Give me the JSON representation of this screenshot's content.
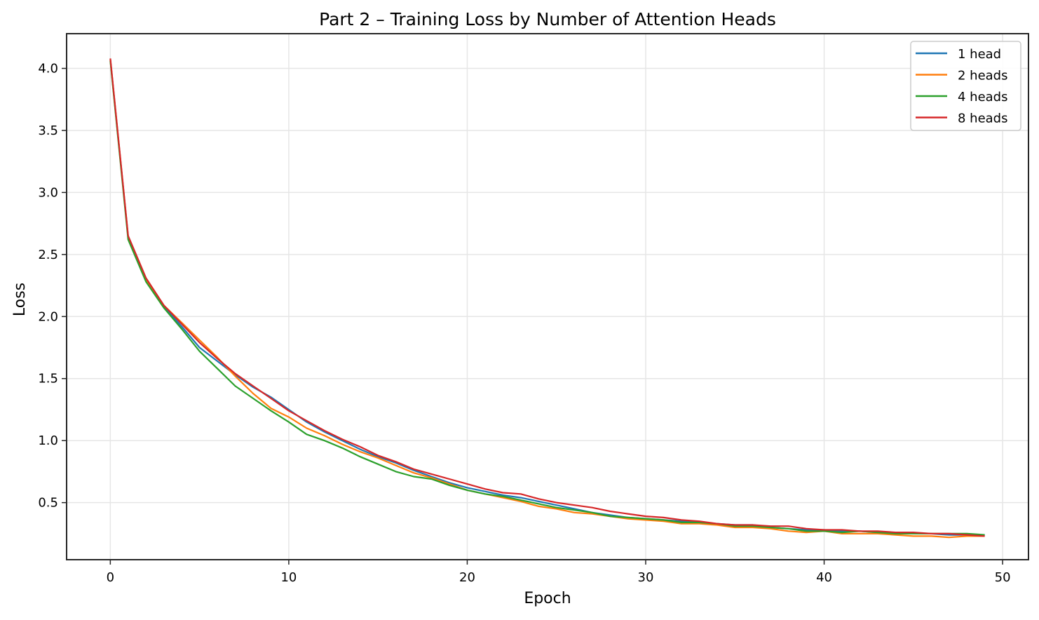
{
  "chart_data": {
    "type": "line",
    "title": "Part 2 – Training Loss by Number of Attention Heads",
    "xlabel": "Epoch",
    "ylabel": "Loss",
    "xlim": [
      -2.45,
      51.45
    ],
    "ylim": [
      0.04,
      4.28
    ],
    "xticks": [
      0,
      10,
      20,
      30,
      40,
      50
    ],
    "yticks": [
      0.5,
      1.0,
      1.5,
      2.0,
      2.5,
      3.0,
      3.5,
      4.0
    ],
    "xtick_labels": [
      "0",
      "10",
      "20",
      "30",
      "40",
      "50"
    ],
    "ytick_labels": [
      "0.5",
      "1.0",
      "1.5",
      "2.0",
      "2.5",
      "3.0",
      "3.5",
      "4.0"
    ],
    "grid": true,
    "legend_position": "upper right",
    "x": [
      0,
      1,
      2,
      3,
      4,
      5,
      6,
      7,
      8,
      9,
      10,
      11,
      12,
      13,
      14,
      15,
      16,
      17,
      18,
      19,
      20,
      21,
      22,
      23,
      24,
      25,
      26,
      27,
      28,
      29,
      30,
      31,
      32,
      33,
      34,
      35,
      36,
      37,
      38,
      39,
      40,
      41,
      42,
      43,
      44,
      45,
      46,
      47,
      48,
      49
    ],
    "series": [
      {
        "name": "1 head",
        "color": "#1f77b4",
        "values": [
          4.07,
          2.64,
          2.3,
          2.08,
          1.92,
          1.75,
          1.64,
          1.53,
          1.43,
          1.35,
          1.25,
          1.15,
          1.07,
          1.0,
          0.93,
          0.87,
          0.82,
          0.76,
          0.71,
          0.66,
          0.62,
          0.59,
          0.56,
          0.54,
          0.51,
          0.48,
          0.45,
          0.42,
          0.4,
          0.38,
          0.37,
          0.36,
          0.35,
          0.34,
          0.33,
          0.32,
          0.32,
          0.3,
          0.29,
          0.28,
          0.28,
          0.27,
          0.27,
          0.26,
          0.26,
          0.25,
          0.25,
          0.24,
          0.24,
          0.24
        ]
      },
      {
        "name": "2 heads",
        "color": "#ff7f0e",
        "values": [
          4.07,
          2.64,
          2.3,
          2.09,
          1.95,
          1.81,
          1.67,
          1.52,
          1.38,
          1.26,
          1.19,
          1.1,
          1.04,
          0.97,
          0.91,
          0.86,
          0.8,
          0.74,
          0.7,
          0.65,
          0.6,
          0.57,
          0.54,
          0.51,
          0.47,
          0.45,
          0.42,
          0.41,
          0.39,
          0.37,
          0.36,
          0.35,
          0.33,
          0.33,
          0.32,
          0.3,
          0.3,
          0.29,
          0.27,
          0.26,
          0.27,
          0.25,
          0.25,
          0.25,
          0.24,
          0.23,
          0.23,
          0.22,
          0.23,
          0.23
        ]
      },
      {
        "name": "4 heads",
        "color": "#2ca02c",
        "values": [
          4.06,
          2.62,
          2.28,
          2.07,
          1.9,
          1.72,
          1.58,
          1.44,
          1.34,
          1.24,
          1.15,
          1.05,
          1.0,
          0.94,
          0.87,
          0.81,
          0.75,
          0.71,
          0.69,
          0.64,
          0.6,
          0.57,
          0.55,
          0.52,
          0.49,
          0.46,
          0.44,
          0.42,
          0.39,
          0.38,
          0.37,
          0.36,
          0.34,
          0.34,
          0.33,
          0.31,
          0.31,
          0.3,
          0.29,
          0.27,
          0.27,
          0.26,
          0.27,
          0.26,
          0.25,
          0.25,
          0.25,
          0.25,
          0.25,
          0.24
        ]
      },
      {
        "name": "8 heads",
        "color": "#d62728",
        "values": [
          4.08,
          2.65,
          2.31,
          2.09,
          1.94,
          1.79,
          1.66,
          1.54,
          1.44,
          1.34,
          1.24,
          1.16,
          1.08,
          1.01,
          0.95,
          0.88,
          0.83,
          0.77,
          0.73,
          0.69,
          0.65,
          0.61,
          0.58,
          0.57,
          0.53,
          0.5,
          0.48,
          0.46,
          0.43,
          0.41,
          0.39,
          0.38,
          0.36,
          0.35,
          0.33,
          0.32,
          0.32,
          0.31,
          0.31,
          0.29,
          0.28,
          0.28,
          0.27,
          0.27,
          0.26,
          0.26,
          0.25,
          0.25,
          0.24,
          0.23
        ]
      }
    ]
  },
  "colors": {
    "axis": "#262626",
    "grid": "#e6e6e6",
    "background": "#ffffff",
    "legend_border": "#cccccc"
  }
}
